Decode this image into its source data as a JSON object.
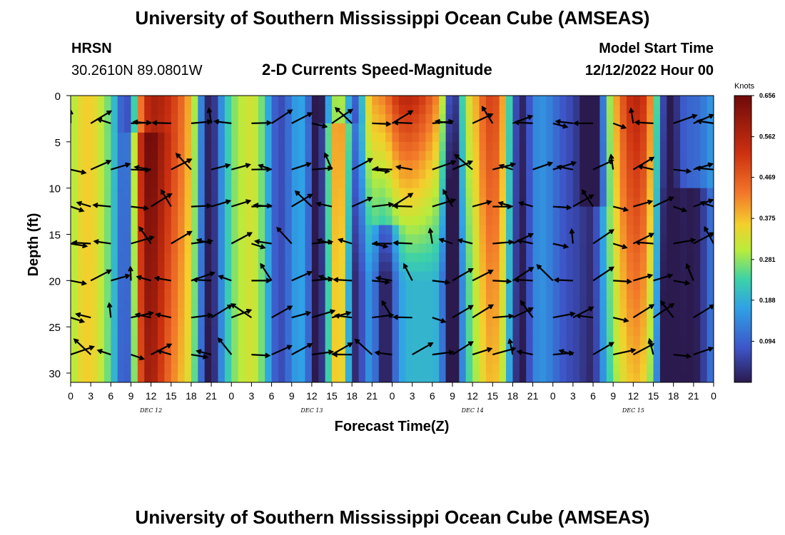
{
  "header": {
    "title": "University of Southern Mississippi Ocean Cube (AMSEAS)",
    "station": "HRSN",
    "coords": "30.2610N  89.0801W",
    "subtitle": "2-D Currents Speed-Magnitude",
    "model_label": "Model Start Time",
    "model_time": "12/12/2022 Hour 00"
  },
  "footer": {
    "title": "University of Southern Mississippi Ocean Cube (AMSEAS)"
  },
  "chart_data": {
    "type": "heatmap",
    "title": "2-D Currents Speed-Magnitude",
    "xlabel": "Forecast Time(Z)",
    "ylabel": "Depth (ft)",
    "x_range_hours": [
      0,
      96
    ],
    "y_range_ft": [
      0,
      31
    ],
    "y_ticks": [
      0,
      5,
      10,
      15,
      20,
      25,
      30
    ],
    "x_tick_labels": [
      "0",
      "3",
      "6",
      "9",
      "12",
      "15",
      "18",
      "21",
      "0",
      "3",
      "6",
      "9",
      "12",
      "15",
      "18",
      "21",
      "0",
      "3",
      "6",
      "9",
      "12",
      "15",
      "18",
      "21",
      "0",
      "3",
      "6",
      "9",
      "12",
      "15",
      "18",
      "21",
      "0"
    ],
    "date_labels": [
      {
        "label": "DEC 12",
        "hour": 12
      },
      {
        "label": "DEC 13",
        "hour": 36
      },
      {
        "label": "DEC 14",
        "hour": 60
      },
      {
        "label": "DEC 15",
        "hour": 84
      }
    ],
    "colorbar": {
      "units": "Knots",
      "min": 0,
      "max": 0.656,
      "ticks": [
        "0.656",
        "0.562",
        "0.469",
        "0.375",
        "0.281",
        "0.188",
        "0.094"
      ]
    },
    "vector_depths_ft": [
      3,
      8,
      12,
      16,
      20,
      24,
      28
    ],
    "vector_hours": [
      0,
      3,
      6,
      9,
      12,
      15,
      18,
      21,
      24,
      27,
      30,
      33,
      36,
      39,
      42,
      45,
      48,
      51,
      54,
      57,
      60,
      63,
      66,
      69,
      72,
      75,
      78,
      81,
      84,
      87,
      90,
      93,
      96
    ]
  }
}
